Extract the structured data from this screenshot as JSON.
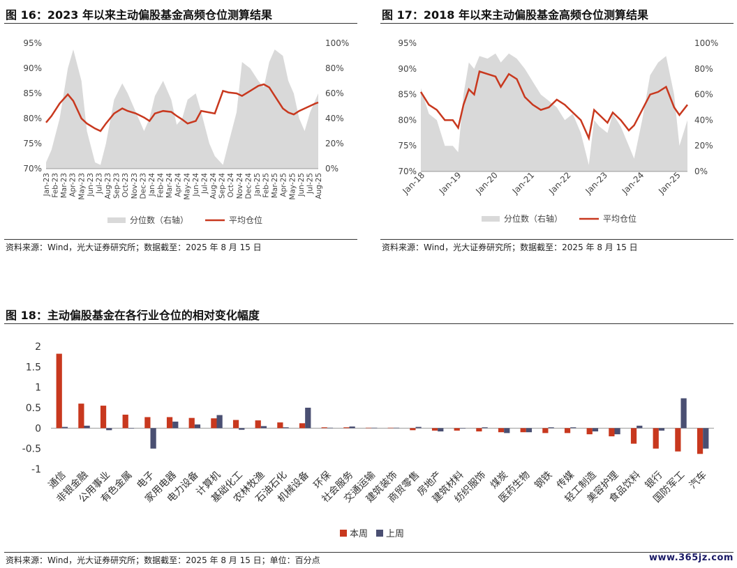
{
  "watermark": "www.365jz.com",
  "colors": {
    "bar_this": "#c8381e",
    "bar_last": "#4a4f72",
    "area": "#d9d9d9",
    "line": "#c8381e"
  },
  "figure16": {
    "title": "图 16：2023 年以来主动偏股基金高频仓位测算结果",
    "source": "资料来源：Wind，光大证券研究所；数据截至：2025 年 8 月 15 日"
  },
  "figure17": {
    "title": "图 17：2018 年以来主动偏股基金高频仓位测算结果",
    "source": "资料来源：Wind，光大证券研究所；数据截至：2025 年 8 月 15 日"
  },
  "figure18": {
    "title": "图 18：主动偏股基金在各行业仓位的相对变化幅度",
    "source": "资料来源：Wind，光大证券研究所；数据截至：2025 年 8 月 15 日；单位：百分点"
  },
  "chart_data": [
    {
      "type": "area+line",
      "left_axis": {
        "ticks": [
          "70%",
          "75%",
          "80%",
          "85%",
          "90%",
          "95%"
        ],
        "range": [
          70,
          95
        ]
      },
      "right_axis": {
        "ticks": [
          "0%",
          "20%",
          "40%",
          "60%",
          "80%",
          "100%"
        ],
        "range": [
          0,
          100
        ]
      },
      "x_ticks": [
        "Jan-23",
        "Feb-23",
        "Mar-23",
        "Apr-23",
        "May-23",
        "Jun-23",
        "Jul-23",
        "Aug-23",
        "Sep-23",
        "Oct-23",
        "Nov-23",
        "Dec-23",
        "Jan-24",
        "Feb-24",
        "Mar-24",
        "Apr-24",
        "May-24",
        "Jun-24",
        "Jul-24",
        "Aug-24",
        "Sep-24",
        "Oct-24",
        "Nov-24",
        "Dec-24",
        "Jan-25",
        "Feb-25",
        "Mar-25",
        "Apr-25",
        "May-25",
        "Jun-25",
        "Jul-25",
        "Aug-25"
      ],
      "legend": [
        "分位数（右轴）",
        "平均仓位"
      ],
      "series": [
        {
          "name": "分位数（右轴）",
          "axis": "right",
          "t": [
            0,
            0.02,
            0.05,
            0.08,
            0.1,
            0.13,
            0.15,
            0.18,
            0.2,
            0.22,
            0.25,
            0.28,
            0.3,
            0.33,
            0.36,
            0.38,
            0.4,
            0.43,
            0.46,
            0.48,
            0.5,
            0.52,
            0.55,
            0.57,
            0.6,
            0.62,
            0.65,
            0.67,
            0.7,
            0.72,
            0.75,
            0.78,
            0.8,
            0.82,
            0.84,
            0.87,
            0.89,
            0.91,
            0.93,
            0.95,
            0.97,
            0.99,
            1.0
          ],
          "values": [
            5,
            15,
            40,
            80,
            95,
            70,
            30,
            5,
            3,
            20,
            55,
            68,
            60,
            45,
            30,
            40,
            58,
            70,
            55,
            35,
            40,
            55,
            60,
            45,
            20,
            10,
            3,
            20,
            45,
            85,
            80,
            70,
            65,
            85,
            95,
            90,
            70,
            60,
            40,
            30,
            45,
            55,
            60
          ]
        },
        {
          "name": "平均仓位",
          "axis": "left",
          "t": [
            0,
            0.02,
            0.05,
            0.08,
            0.1,
            0.13,
            0.15,
            0.18,
            0.2,
            0.22,
            0.25,
            0.28,
            0.3,
            0.33,
            0.36,
            0.38,
            0.4,
            0.43,
            0.46,
            0.48,
            0.5,
            0.52,
            0.55,
            0.57,
            0.6,
            0.62,
            0.65,
            0.67,
            0.7,
            0.72,
            0.75,
            0.78,
            0.8,
            0.82,
            0.84,
            0.87,
            0.89,
            0.91,
            0.93,
            0.95,
            0.97,
            0.99,
            1.0
          ],
          "values": [
            79.2,
            80.5,
            83,
            84.8,
            83.5,
            80,
            79,
            78,
            77.5,
            79,
            81,
            82,
            81.5,
            81,
            80.2,
            79.5,
            81,
            81.5,
            81.3,
            80.5,
            79.8,
            79,
            79.5,
            81.5,
            81.2,
            81,
            85.5,
            85.2,
            85,
            84.5,
            85.5,
            86.5,
            86.8,
            86.2,
            84.5,
            82,
            81.2,
            80.8,
            81.5,
            82,
            82.5,
            83,
            83.2
          ]
        }
      ]
    },
    {
      "type": "area+line",
      "left_axis": {
        "ticks": [
          "70%",
          "75%",
          "80%",
          "85%",
          "90%",
          "95%"
        ],
        "range": [
          70,
          95
        ]
      },
      "right_axis": {
        "ticks": [
          "0%",
          "20%",
          "40%",
          "60%",
          "80%",
          "100%"
        ],
        "range": [
          0,
          100
        ]
      },
      "x_ticks": [
        "Jan-18",
        "Jan-19",
        "Jan-20",
        "Jan-21",
        "Jan-22",
        "Jan-23",
        "Jan-24",
        "Jan-25"
      ],
      "legend": [
        "分位数（右轴）",
        "平均仓位"
      ],
      "series": [
        {
          "name": "分位数（右轴）",
          "axis": "right",
          "t": [
            0,
            0.03,
            0.06,
            0.09,
            0.12,
            0.14,
            0.16,
            0.18,
            0.2,
            0.22,
            0.25,
            0.28,
            0.3,
            0.33,
            0.36,
            0.39,
            0.42,
            0.45,
            0.48,
            0.51,
            0.54,
            0.57,
            0.6,
            0.63,
            0.65,
            0.67,
            0.7,
            0.72,
            0.75,
            0.78,
            0.8,
            0.83,
            0.86,
            0.89,
            0.92,
            0.95,
            0.97,
            1.0
          ],
          "values": [
            65,
            45,
            40,
            20,
            20,
            15,
            60,
            85,
            80,
            90,
            88,
            92,
            85,
            92,
            88,
            80,
            70,
            60,
            55,
            50,
            40,
            45,
            30,
            5,
            40,
            35,
            30,
            45,
            35,
            20,
            10,
            40,
            75,
            85,
            90,
            60,
            20,
            40
          ]
        },
        {
          "name": "平均仓位",
          "axis": "left",
          "t": [
            0,
            0.03,
            0.06,
            0.09,
            0.12,
            0.14,
            0.16,
            0.18,
            0.2,
            0.22,
            0.25,
            0.28,
            0.3,
            0.33,
            0.36,
            0.39,
            0.42,
            0.45,
            0.48,
            0.51,
            0.54,
            0.57,
            0.6,
            0.63,
            0.65,
            0.67,
            0.7,
            0.72,
            0.75,
            0.78,
            0.8,
            0.83,
            0.86,
            0.89,
            0.92,
            0.95,
            0.97,
            1.0
          ],
          "values": [
            85.5,
            83,
            82,
            80,
            80,
            78.5,
            83,
            86,
            85,
            89.5,
            89,
            88.5,
            86.5,
            89,
            88,
            84.5,
            83,
            82,
            82.5,
            84,
            83,
            81.5,
            80,
            76.5,
            82,
            81,
            79.5,
            81.5,
            80,
            78,
            79,
            82,
            85,
            85.5,
            86.5,
            82.5,
            81,
            83
          ]
        }
      ]
    },
    {
      "type": "bar",
      "y_ticks": [
        "2",
        "1.5",
        "1",
        "0.5",
        "0",
        "-0.5",
        "-1"
      ],
      "ylim": [
        -1,
        2
      ],
      "legend": [
        "本周",
        "上周"
      ],
      "categories": [
        "通信",
        "非银金融",
        "公用事业",
        "有色金属",
        "电子",
        "家用电器",
        "电力设备",
        "计算机",
        "基础化工",
        "农林牧渔",
        "石油石化",
        "机械设备",
        "环保",
        "社会服务",
        "交通运输",
        "建筑装饰",
        "商贸零售",
        "房地产",
        "建筑材料",
        "纺织服饰",
        "煤炭",
        "医药生物",
        "钢铁",
        "传媒",
        "轻工制造",
        "美容护理",
        "食品饮料",
        "银行",
        "国防军工",
        "汽车"
      ],
      "series": [
        {
          "name": "本周",
          "values": [
            1.82,
            0.6,
            0.55,
            0.33,
            0.27,
            0.27,
            0.25,
            0.24,
            0.2,
            0.19,
            0.14,
            0.12,
            0.02,
            0.02,
            0.01,
            0.01,
            -0.05,
            -0.06,
            -0.06,
            -0.08,
            -0.1,
            -0.1,
            -0.12,
            -0.12,
            -0.15,
            -0.2,
            -0.38,
            -0.5,
            -0.57,
            -0.63
          ]
        },
        {
          "name": "上周",
          "values": [
            0.03,
            0.06,
            -0.05,
            0.0,
            -0.5,
            0.16,
            0.09,
            0.32,
            -0.04,
            0.05,
            0.02,
            0.5,
            0.01,
            0.04,
            0.01,
            0.01,
            0.03,
            -0.08,
            0.0,
            0.02,
            -0.12,
            -0.1,
            0.02,
            0.02,
            -0.08,
            -0.15,
            0.06,
            -0.06,
            0.73,
            -0.5
          ]
        }
      ]
    }
  ]
}
